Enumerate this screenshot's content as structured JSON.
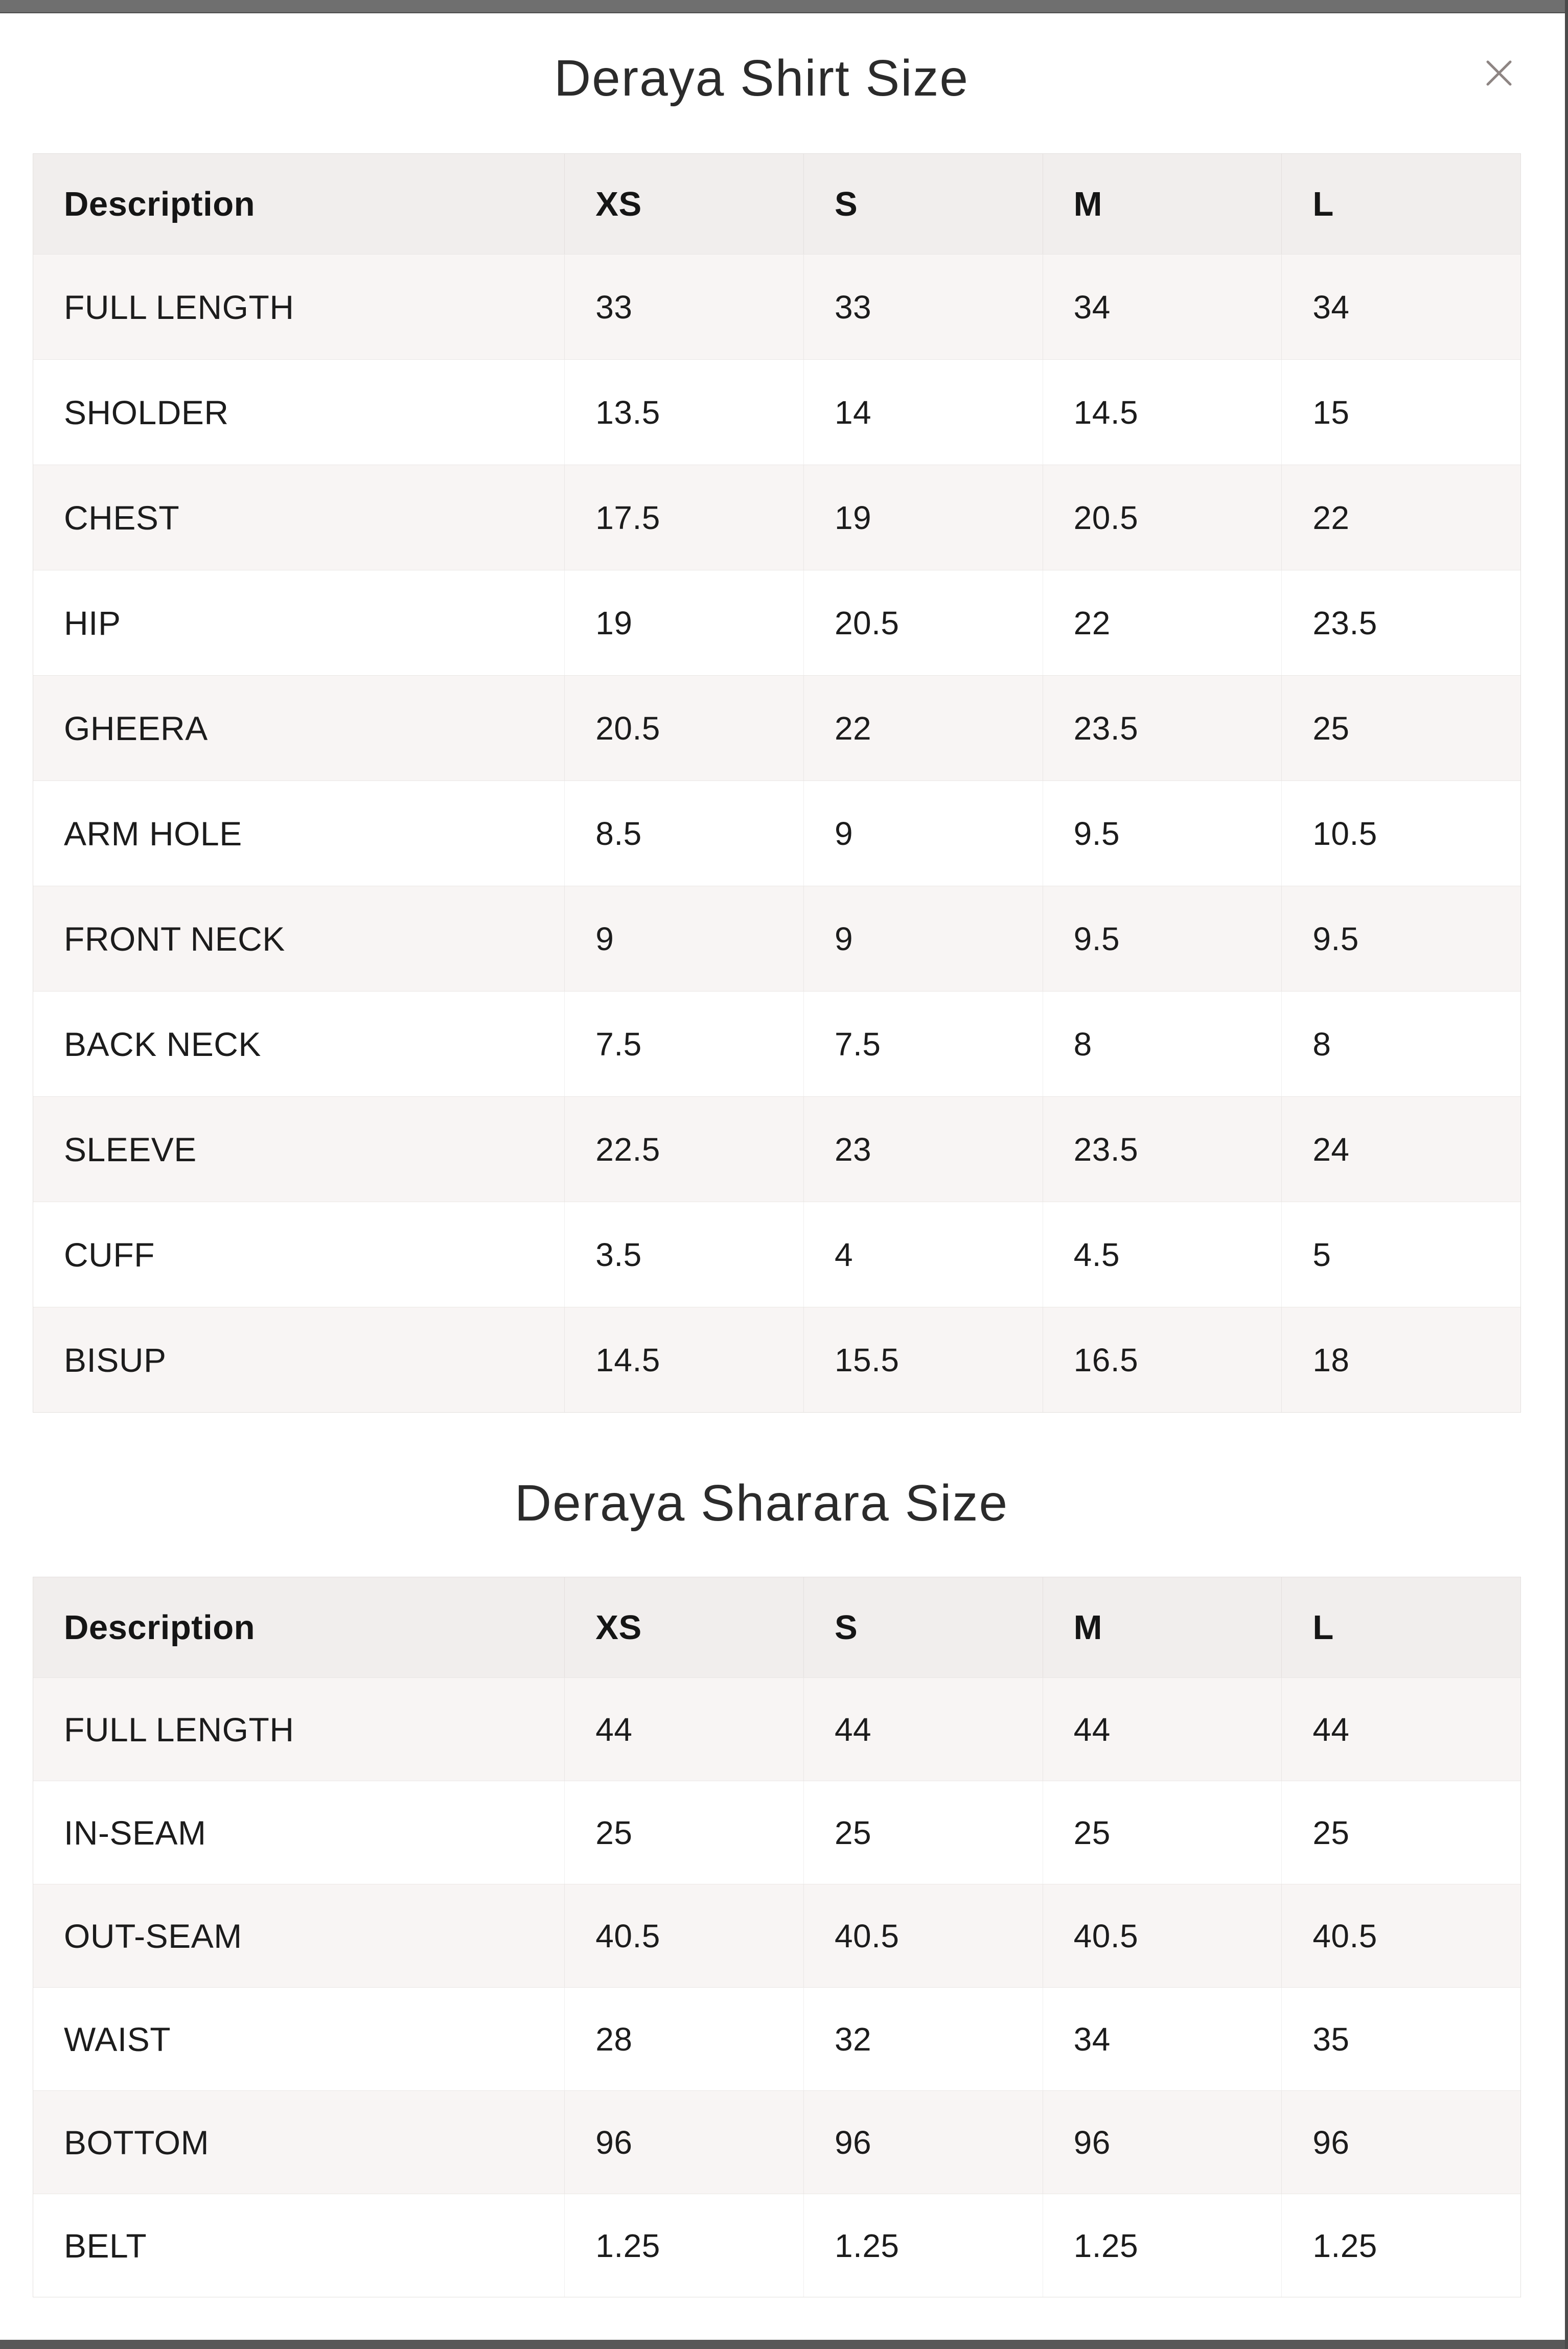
{
  "window": {
    "close_icon": "x-close",
    "colors": {
      "top_bar": "#6f6f6f",
      "bottom_bar": "#585858",
      "right_edge": "#4a4a4a",
      "close_icon": "#8e8583",
      "header_row_bg": "#f1eeed",
      "tinted_row_bg": "#f8f5f4",
      "plain_row_bg": "#ffffff",
      "title_text": "#2b2b2b",
      "table_text": "#1c1c1c"
    }
  },
  "tables": [
    {
      "title": "Deraya Shirt Size",
      "columns": [
        "Description",
        "XS",
        "S",
        "M",
        "L"
      ],
      "rows": [
        {
          "label": "FULL LENGTH",
          "values": [
            "33",
            "33",
            "34",
            "34"
          ]
        },
        {
          "label": "SHOLDER",
          "values": [
            "13.5",
            "14",
            "14.5",
            "15"
          ]
        },
        {
          "label": "CHEST",
          "values": [
            "17.5",
            "19",
            "20.5",
            "22"
          ]
        },
        {
          "label": "HIP",
          "values": [
            "19",
            "20.5",
            "22",
            "23.5"
          ]
        },
        {
          "label": "GHEERA",
          "values": [
            "20.5",
            "22",
            "23.5",
            "25"
          ]
        },
        {
          "label": "ARM HOLE",
          "values": [
            "8.5",
            "9",
            "9.5",
            "10.5"
          ]
        },
        {
          "label": "FRONT NECK",
          "values": [
            "9",
            "9",
            "9.5",
            "9.5"
          ]
        },
        {
          "label": "BACK NECK",
          "values": [
            "7.5",
            "7.5",
            "8",
            "8"
          ]
        },
        {
          "label": "SLEEVE",
          "values": [
            "22.5",
            "23",
            "23.5",
            "24"
          ]
        },
        {
          "label": "CUFF",
          "values": [
            "3.5",
            "4",
            "4.5",
            "5"
          ]
        },
        {
          "label": "BISUP",
          "values": [
            "14.5",
            "15.5",
            "16.5",
            "18"
          ]
        }
      ]
    },
    {
      "title": "Deraya Sharara Size",
      "columns": [
        "Description",
        "XS",
        "S",
        "M",
        "L"
      ],
      "rows": [
        {
          "label": "FULL LENGTH",
          "values": [
            "44",
            "44",
            "44",
            "44"
          ]
        },
        {
          "label": "IN-SEAM",
          "values": [
            "25",
            "25",
            "25",
            "25"
          ]
        },
        {
          "label": "OUT-SEAM",
          "values": [
            "40.5",
            "40.5",
            "40.5",
            "40.5"
          ]
        },
        {
          "label": "WAIST",
          "values": [
            "28",
            "32",
            "34",
            "35"
          ]
        },
        {
          "label": "BOTTOM",
          "values": [
            "96",
            "96",
            "96",
            "96"
          ]
        },
        {
          "label": "BELT",
          "values": [
            "1.25",
            "1.25",
            "1.25",
            "1.25"
          ]
        }
      ]
    }
  ]
}
